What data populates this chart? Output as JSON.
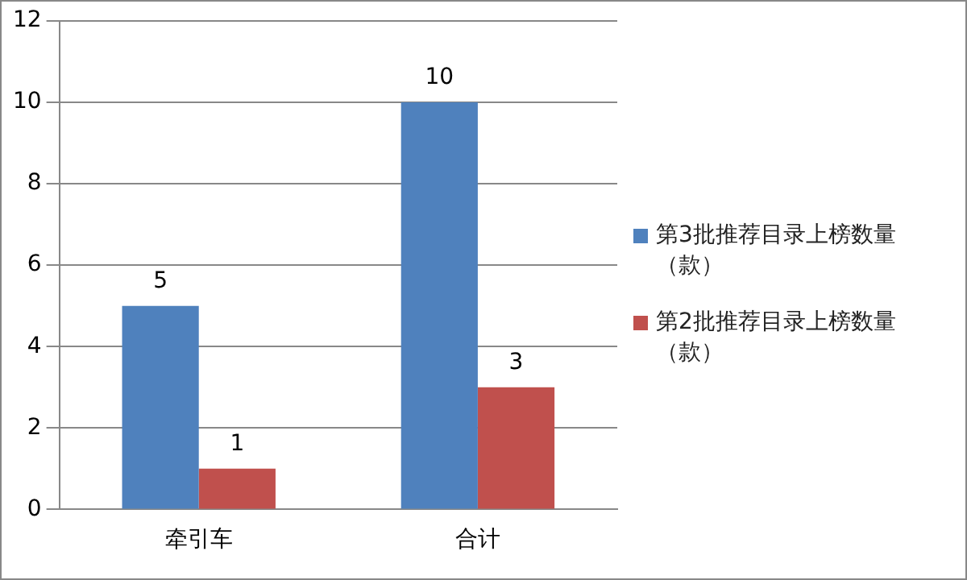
{
  "chart_data": {
    "type": "bar",
    "categories": [
      "牵引车",
      "合计"
    ],
    "series": [
      {
        "name": "第3批推荐目录上榜数量（款）",
        "color": "#4f81bd",
        "values": [
          5,
          10
        ]
      },
      {
        "name": "第2批推荐目录上榜数量（款）",
        "color": "#c0504d",
        "values": [
          1,
          3
        ]
      }
    ],
    "ylim": [
      0,
      12
    ],
    "yticks": [
      0,
      2,
      4,
      6,
      8,
      10,
      12
    ],
    "grid": "y",
    "legend": "right",
    "data_labels": true
  }
}
